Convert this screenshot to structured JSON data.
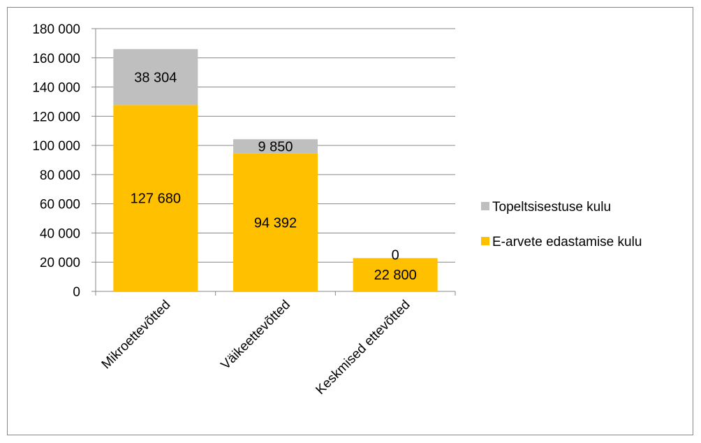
{
  "chart_data": {
    "type": "bar",
    "stacked": true,
    "categories": [
      "Mikroettevõtted",
      "Väikeettevõtted",
      "Keskmised ettevõtted"
    ],
    "series": [
      {
        "name": "E-arvete edastamise kulu",
        "values": [
          127680,
          94392,
          22800
        ],
        "color": "#FFC000"
      },
      {
        "name": "Topeltsisestuse kulu",
        "values": [
          38304,
          9850,
          0
        ],
        "color": "#BFBFBF"
      }
    ],
    "data_labels": [
      [
        "127 680",
        "94 392",
        "22 800"
      ],
      [
        "38 304",
        "9 850",
        "0"
      ]
    ],
    "yticks": [
      "0",
      "20 000",
      "40 000",
      "60 000",
      "80 000",
      "100 000",
      "120 000",
      "140 000",
      "160 000",
      "180 000"
    ],
    "ylim": [
      0,
      180000
    ],
    "ystep": 20000,
    "grid": true,
    "legend_position": "right"
  }
}
